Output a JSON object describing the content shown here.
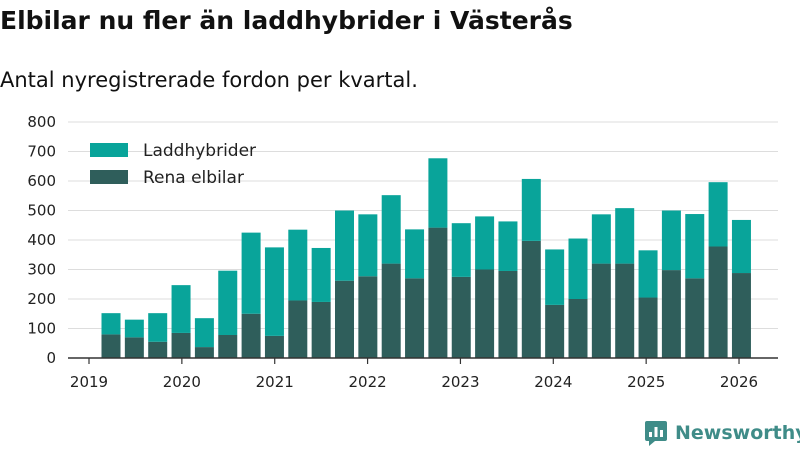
{
  "header": {
    "title": "Elbilar nu fler än laddhybrider i Västerås",
    "subtitle": "Antal nyregistrerade fordon per kvartal."
  },
  "brand": {
    "name": "Newsworthy",
    "icon": "newsworthy-logo-icon"
  },
  "colors": {
    "laddhybrider": "#09a49a",
    "elbilar": "#2f5e5b",
    "grid": "#dddddd",
    "axis": "#333333"
  },
  "chart_data": {
    "type": "bar",
    "stacked": true,
    "title": "",
    "xlabel": "",
    "ylabel": "",
    "ylim": [
      0,
      800
    ],
    "yticks": [
      0,
      100,
      200,
      300,
      400,
      500,
      600,
      700,
      800
    ],
    "xticks": [
      "2019",
      "2020",
      "2021",
      "2022",
      "2023",
      "2024",
      "2025",
      "2026"
    ],
    "grid": true,
    "legend_position": "top-left",
    "categories": [
      "2019 Q2",
      "2019 Q3",
      "2019 Q4",
      "2020 Q1",
      "2020 Q2",
      "2020 Q3",
      "2020 Q4",
      "2021 Q1",
      "2021 Q2",
      "2021 Q3",
      "2021 Q4",
      "2022 Q1",
      "2022 Q2",
      "2022 Q3",
      "2022 Q4",
      "2023 Q1",
      "2023 Q2",
      "2023 Q3",
      "2023 Q4",
      "2024 Q1",
      "2024 Q2",
      "2024 Q3",
      "2024 Q4",
      "2025 Q1",
      "2025 Q2",
      "2025 Q3",
      "2025 Q4",
      "2026 Q1"
    ],
    "series": [
      {
        "name": "Rena elbilar",
        "values": [
          80,
          70,
          55,
          85,
          37,
          78,
          150,
          75,
          195,
          190,
          262,
          277,
          320,
          270,
          442,
          275,
          300,
          295,
          397,
          180,
          200,
          320,
          320,
          205,
          298,
          270,
          378,
          288
        ]
      },
      {
        "name": "Laddhybrider",
        "values": [
          72,
          60,
          97,
          162,
          98,
          218,
          275,
          300,
          240,
          183,
          238,
          210,
          232,
          166,
          235,
          182,
          180,
          168,
          210,
          188,
          205,
          167,
          188,
          160,
          202,
          218,
          218,
          180
        ]
      }
    ]
  }
}
